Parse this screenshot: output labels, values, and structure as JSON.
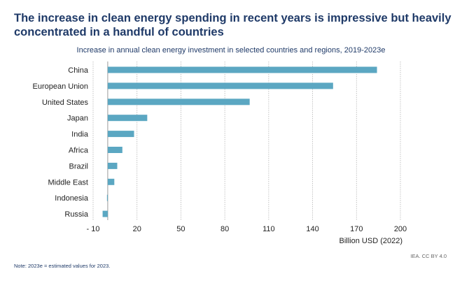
{
  "header": {
    "title": "The increase in clean energy spending in recent years is impressive but heavily concentrated in a handful of countries"
  },
  "chart_data": {
    "type": "bar",
    "orientation": "horizontal",
    "title": "Increase in annual clean energy investment in selected countries and regions, 2019-2023e",
    "categories": [
      "China",
      "European Union",
      "United States",
      "Japan",
      "India",
      "Africa",
      "Brazil",
      "Middle East",
      "Indonesia",
      "Russia"
    ],
    "values": [
      184,
      154,
      97,
      27,
      18,
      10,
      6.5,
      4.5,
      -0.5,
      -3.5
    ],
    "xlabel": "Billion USD (2022)",
    "ylabel": "",
    "xlim": [
      -10,
      200
    ],
    "xticks": [
      -10,
      20,
      50,
      80,
      110,
      140,
      170,
      200
    ],
    "xtick_labels": [
      "- 10",
      "20",
      "50",
      "80",
      "110",
      "140",
      "170",
      "200"
    ],
    "grid": true,
    "bar_color": "#5ba7c2",
    "legend": "none"
  },
  "footer": {
    "note": "Note:  2023e = estimated values for 2023.",
    "source": "IEA. CC BY 4.0"
  }
}
